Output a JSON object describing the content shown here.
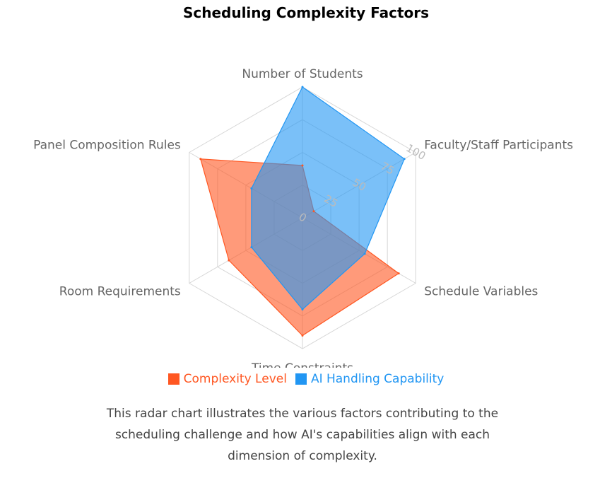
{
  "chart_data": {
    "type": "radar",
    "title": "Scheduling Complexity Factors",
    "categories": [
      "Number of Students",
      "Faculty/Staff Participants",
      "Schedule Variables",
      "Time Constraints",
      "Room Requirements",
      "Panel Composition Rules"
    ],
    "rlim": [
      0,
      100
    ],
    "ticks": [
      0,
      25,
      50,
      75,
      100
    ],
    "series": [
      {
        "name": "Complexity Level",
        "values": [
          40,
          10,
          85,
          90,
          65,
          90
        ],
        "color": "#ff5722"
      },
      {
        "name": "AI Handling Capability",
        "values": [
          100,
          90,
          55,
          70,
          45,
          45
        ],
        "color": "#2196f3"
      }
    ],
    "grid": true,
    "legend_position": "bottom"
  },
  "caption": "This radar chart illustrates the various factors contributing to the scheduling challenge and how AI's capabilities align with each dimension of complexity."
}
